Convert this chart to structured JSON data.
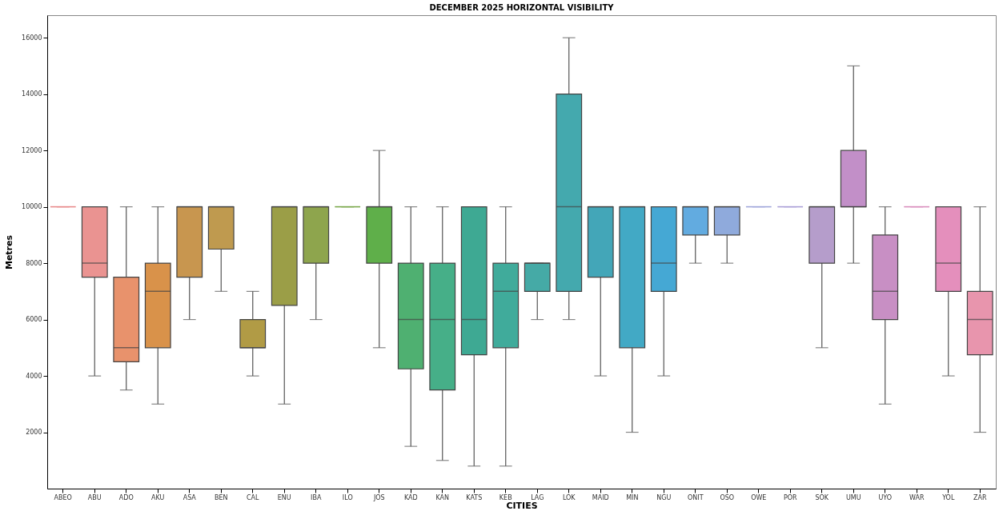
{
  "chart_data": {
    "type": "box",
    "title": "DECEMBER 2025 HORIZONTAL VISIBILITY",
    "xlabel": "CITIES",
    "ylabel": "Metres",
    "categories": [
      "ABEO",
      "ABU",
      "ADO",
      "AKU",
      "ASA",
      "BEN",
      "CAL",
      "ENU",
      "IBA",
      "ILO",
      "JOS",
      "KAD",
      "KAN",
      "KATS",
      "KEB",
      "LAG",
      "LOK",
      "MAID",
      "MIN",
      "NGU",
      "ONIT",
      "OSO",
      "OWE",
      "POR",
      "SOK",
      "UMU",
      "UYO",
      "WAR",
      "YOL",
      "ZAR"
    ],
    "colors": [
      "#e8898a",
      "#ea9391",
      "#e8926c",
      "#d9924a",
      "#c8964f",
      "#bf9a4f",
      "#b19b45",
      "#9b9e47",
      "#8ea54d",
      "#7aa84a",
      "#5faf4a",
      "#4fb071",
      "#46af88",
      "#3ea993",
      "#40ab9b",
      "#45aaa6",
      "#44a9ae",
      "#43a6b8",
      "#42a9c5",
      "#45a8d4",
      "#62abe0",
      "#8faadc",
      "#a0a6db",
      "#aba0d8",
      "#b59dcb",
      "#c28fc8",
      "#c88fc4",
      "#d98dbd",
      "#e48fbc",
      "#e895ad"
    ],
    "boxes": [
      {
        "low": 10000,
        "q1": 10000,
        "median": 10000,
        "q3": 10000,
        "high": 10000
      },
      {
        "low": 4000,
        "q1": 7500,
        "median": 8000,
        "q3": 10000,
        "high": 10000
      },
      {
        "low": 3500,
        "q1": 4500,
        "median": 5000,
        "q3": 7500,
        "high": 10000
      },
      {
        "low": 3000,
        "q1": 5000,
        "median": 7000,
        "q3": 8000,
        "high": 10000
      },
      {
        "low": 6000,
        "q1": 7500,
        "median": 10000,
        "q3": 10000,
        "high": 10000
      },
      {
        "low": 7000,
        "q1": 8500,
        "median": 10000,
        "q3": 10000,
        "high": 10000
      },
      {
        "low": 4000,
        "q1": 5000,
        "median": 5000,
        "q3": 6000,
        "high": 7000
      },
      {
        "low": 3000,
        "q1": 6500,
        "median": 10000,
        "q3": 10000,
        "high": 10000
      },
      {
        "low": 6000,
        "q1": 8000,
        "median": 10000,
        "q3": 10000,
        "high": 10000
      },
      {
        "low": 10000,
        "q1": 10000,
        "median": 10000,
        "q3": 10000,
        "high": 10000
      },
      {
        "low": 5000,
        "q1": 8000,
        "median": 10000,
        "q3": 10000,
        "high": 12000
      },
      {
        "low": 1500,
        "q1": 4250,
        "median": 6000,
        "q3": 8000,
        "high": 10000
      },
      {
        "low": 1000,
        "q1": 3500,
        "median": 6000,
        "q3": 8000,
        "high": 10000
      },
      {
        "low": 800,
        "q1": 4750,
        "median": 6000,
        "q3": 10000,
        "high": 10000
      },
      {
        "low": 800,
        "q1": 5000,
        "median": 7000,
        "q3": 8000,
        "high": 10000
      },
      {
        "low": 6000,
        "q1": 7000,
        "median": 8000,
        "q3": 8000,
        "high": 8000
      },
      {
        "low": 6000,
        "q1": 7000,
        "median": 10000,
        "q3": 14000,
        "high": 16000
      },
      {
        "low": 4000,
        "q1": 7500,
        "median": 10000,
        "q3": 10000,
        "high": 10000
      },
      {
        "low": 2000,
        "q1": 5000,
        "median": 10000,
        "q3": 10000,
        "high": 10000
      },
      {
        "low": 4000,
        "q1": 7000,
        "median": 8000,
        "q3": 10000,
        "high": 10000
      },
      {
        "low": 8000,
        "q1": 9000,
        "median": 10000,
        "q3": 10000,
        "high": 10000
      },
      {
        "low": 8000,
        "q1": 9000,
        "median": 10000,
        "q3": 10000,
        "high": 10000
      },
      {
        "low": 10000,
        "q1": 10000,
        "median": 10000,
        "q3": 10000,
        "high": 10000
      },
      {
        "low": 10000,
        "q1": 10000,
        "median": 10000,
        "q3": 10000,
        "high": 10000
      },
      {
        "low": 5000,
        "q1": 8000,
        "median": 10000,
        "q3": 10000,
        "high": 10000
      },
      {
        "low": 8000,
        "q1": 10000,
        "median": 10000,
        "q3": 12000,
        "high": 15000
      },
      {
        "low": 3000,
        "q1": 6000,
        "median": 7000,
        "q3": 9000,
        "high": 10000
      },
      {
        "low": 10000,
        "q1": 10000,
        "median": 10000,
        "q3": 10000,
        "high": 10000
      },
      {
        "low": 4000,
        "q1": 7000,
        "median": 8000,
        "q3": 10000,
        "high": 10000
      },
      {
        "low": 2000,
        "q1": 4750,
        "median": 6000,
        "q3": 7000,
        "high": 10000
      }
    ],
    "ylim": [
      0,
      16800
    ],
    "yticks": [
      2000,
      4000,
      6000,
      8000,
      10000,
      12000,
      14000,
      16000
    ]
  }
}
